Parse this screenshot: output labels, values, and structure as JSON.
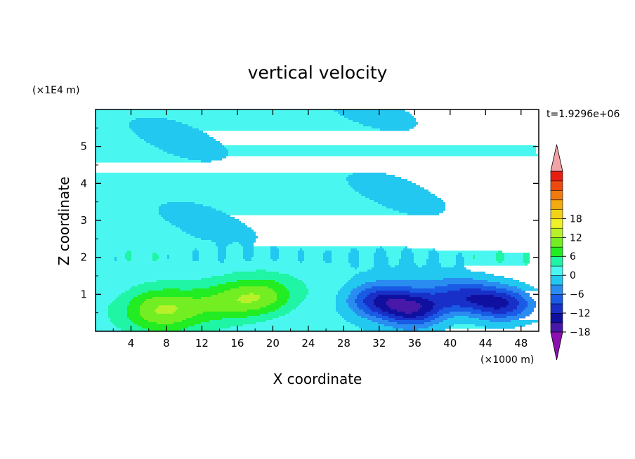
{
  "chart_data": {
    "type": "heatmap",
    "title": "vertical velocity",
    "xlabel": "X coordinate",
    "ylabel": "Z coordinate",
    "x_unit": "(×1000 m)",
    "y_unit": "(×1E4 m)",
    "time_label": "t=1.9296e+06",
    "xlim": [
      0,
      50
    ],
    "ylim": [
      0,
      6
    ],
    "x_ticks": [
      "4",
      "8",
      "12",
      "16",
      "20",
      "24",
      "28",
      "32",
      "36",
      "40",
      "44",
      "48"
    ],
    "y_ticks": [
      "1",
      "2",
      "3",
      "4",
      "5"
    ],
    "colorbar": {
      "tick_labels": [
        "18",
        "12",
        "6",
        "0",
        "−6",
        "−12",
        "−18"
      ],
      "tick_values": [
        18,
        12,
        6,
        0,
        -6,
        -12,
        -18
      ],
      "range": [
        -21,
        21
      ],
      "step": 3,
      "colors": [
        "#8a10b0",
        "#4818a8",
        "#1010a0",
        "#1830c8",
        "#1a5be6",
        "#2a8cf0",
        "#22c8f0",
        "#4af7f0",
        "#1ff5a5",
        "#22ec22",
        "#72ee22",
        "#b8f02a",
        "#f0f02a",
        "#f2d218",
        "#f2aa10",
        "#f07a10",
        "#ee4a10",
        "#e81e10",
        "#f2a3a6"
      ]
    },
    "features": [
      {
        "kind": "updraft",
        "center": [
          7.8,
          0.55
        ],
        "peak": 8.5
      },
      {
        "kind": "updraft",
        "center": [
          15.5,
          0.8
        ],
        "peak": 7
      },
      {
        "kind": "updraft",
        "center": [
          19,
          1.0
        ],
        "peak": 5
      },
      {
        "kind": "downdraft",
        "center": [
          36,
          0.55
        ],
        "peak": -12.5
      },
      {
        "kind": "downdraft",
        "center": [
          32,
          0.85
        ],
        "peak": -9.5
      },
      {
        "kind": "downdraft",
        "center": [
          46,
          0.72
        ],
        "peak": -10
      },
      {
        "kind": "downdraft",
        "center": [
          41.5,
          0.95
        ],
        "peak": -7
      },
      {
        "kind": "updraft",
        "center": [
          40,
          0.45
        ],
        "peak": 2.5
      }
    ]
  }
}
